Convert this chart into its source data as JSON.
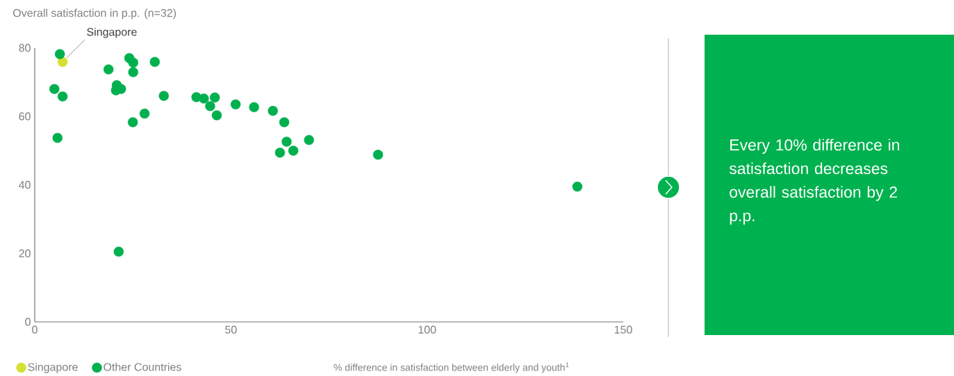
{
  "chart_data": {
    "type": "scatter",
    "ylabel": "Overall satisfaction in p.p. (n=32)",
    "xlabel": "% difference in satisfaction between elderly and youth$^{1}$",
    "xlim": [
      0,
      150
    ],
    "xticks": [
      0,
      50,
      100,
      150
    ],
    "ylim": [
      0,
      80
    ],
    "yticks": [
      0,
      20,
      40,
      60,
      80
    ],
    "grid": false,
    "legend": "bottom",
    "marker": "circle",
    "series": [
      {
        "name": "Singapore",
        "color": "#d4e033",
        "x": [
          7.1
        ],
        "values": [
          75.9
        ]
      },
      {
        "name": "Other Countries",
        "color": "#00b04f",
        "x": [
          6.4,
          5.0,
          7.1,
          5.8,
          18.8,
          24.1,
          25.1,
          25.1,
          30.6,
          20.9,
          20.7,
          22.0,
          32.9,
          28.0,
          25.0,
          21.4,
          41.2,
          43.1,
          45.9,
          44.7,
          46.4,
          51.2,
          55.9,
          60.7,
          63.6,
          64.2,
          69.9,
          62.5,
          65.9,
          87.5,
          138.3
        ],
        "values": [
          78.2,
          68.0,
          65.8,
          53.7,
          73.7,
          77.0,
          75.7,
          72.9,
          75.9,
          69.1,
          67.6,
          68.0,
          66.0,
          60.8,
          58.3,
          20.5,
          65.6,
          65.2,
          65.5,
          63.0,
          60.3,
          63.5,
          62.7,
          61.6,
          58.3,
          52.6,
          53.1,
          49.4,
          50.0,
          48.8,
          39.5
        ]
      }
    ],
    "annotations": [
      {
        "text": "Singapore",
        "x": 7.1,
        "y": 75.9
      },
      "Every 10% difference in satisfaction decreases overall satisfaction by 2 p.p."
    ]
  }
}
